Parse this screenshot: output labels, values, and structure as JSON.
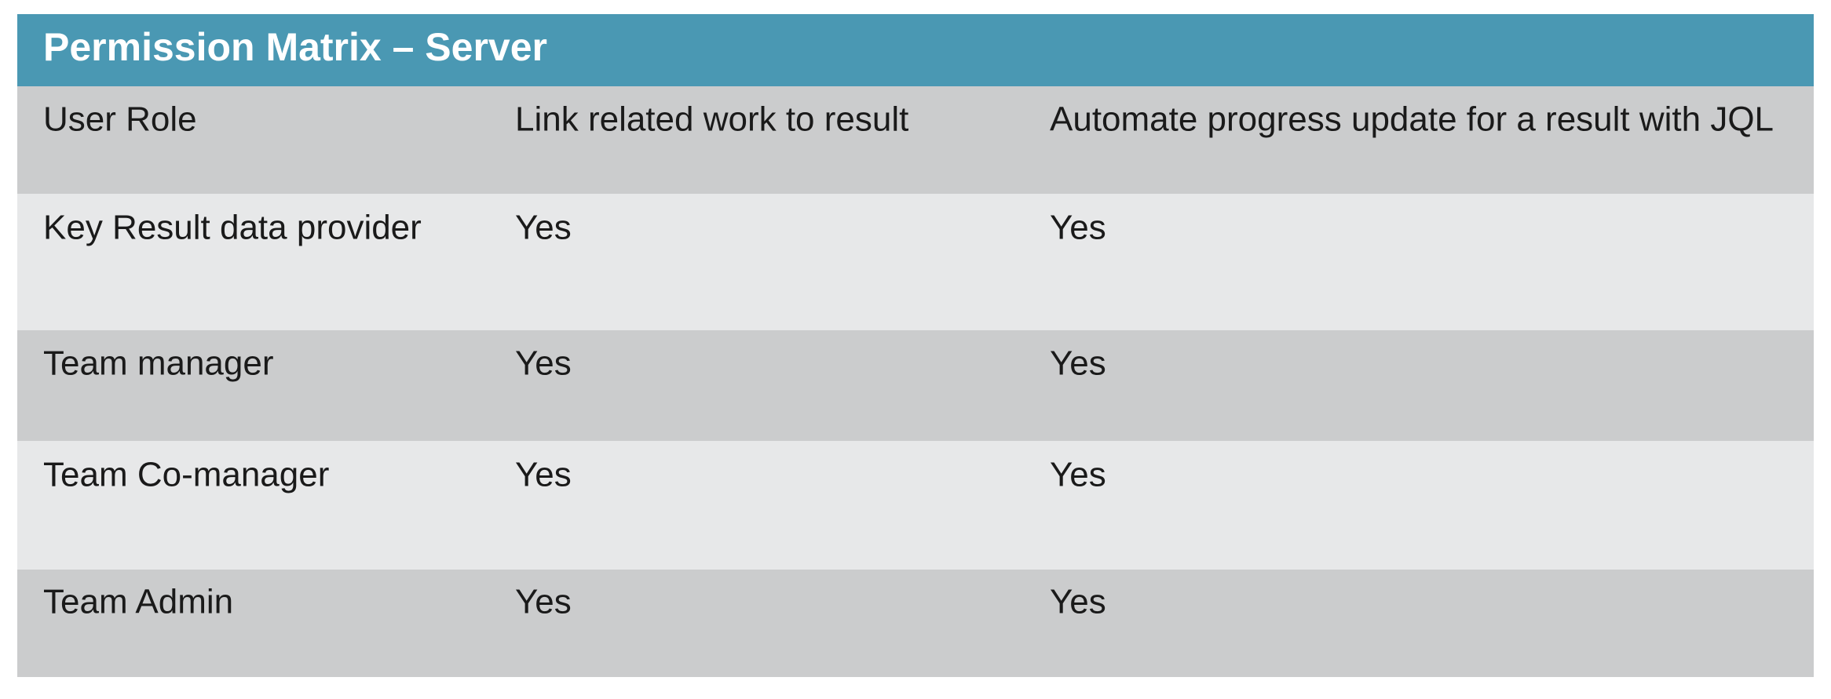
{
  "title": "Permission Matrix – Server",
  "table": {
    "header": [
      "User Role",
      "Link related work to result",
      "Automate progress update for a result with JQL"
    ],
    "rows": [
      [
        "Key Result data provider",
        "Yes",
        "Yes"
      ],
      [
        "Team manager",
        "Yes",
        "Yes"
      ],
      [
        "Team Co-manager",
        "Yes",
        "Yes"
      ],
      [
        "Team Admin",
        "Yes",
        "Yes"
      ]
    ]
  }
}
